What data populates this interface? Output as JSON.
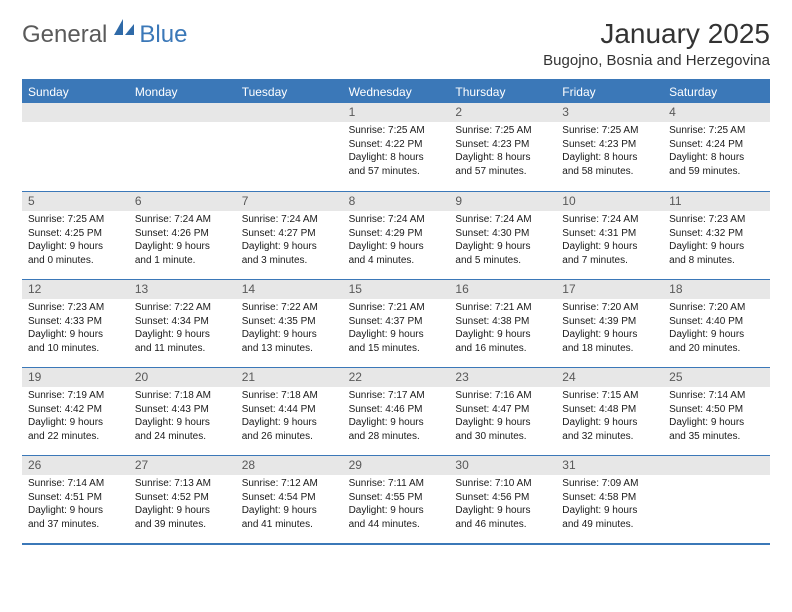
{
  "logo": {
    "general": "General",
    "blue": "Blue"
  },
  "title": "January 2025",
  "location": "Bugojno, Bosnia and Herzegovina",
  "colors": {
    "accent": "#3b78b8",
    "dayHeaderBg": "#e7e7e7",
    "text": "#1a1a1a",
    "mutedText": "#595959",
    "logoGray": "#5a5a5a"
  },
  "weekdays": [
    "Sunday",
    "Monday",
    "Tuesday",
    "Wednesday",
    "Thursday",
    "Friday",
    "Saturday"
  ],
  "weeks": [
    [
      {
        "num": "",
        "lines": []
      },
      {
        "num": "",
        "lines": []
      },
      {
        "num": "",
        "lines": []
      },
      {
        "num": "1",
        "lines": [
          "Sunrise: 7:25 AM",
          "Sunset: 4:22 PM",
          "Daylight: 8 hours",
          "and 57 minutes."
        ]
      },
      {
        "num": "2",
        "lines": [
          "Sunrise: 7:25 AM",
          "Sunset: 4:23 PM",
          "Daylight: 8 hours",
          "and 57 minutes."
        ]
      },
      {
        "num": "3",
        "lines": [
          "Sunrise: 7:25 AM",
          "Sunset: 4:23 PM",
          "Daylight: 8 hours",
          "and 58 minutes."
        ]
      },
      {
        "num": "4",
        "lines": [
          "Sunrise: 7:25 AM",
          "Sunset: 4:24 PM",
          "Daylight: 8 hours",
          "and 59 minutes."
        ]
      }
    ],
    [
      {
        "num": "5",
        "lines": [
          "Sunrise: 7:25 AM",
          "Sunset: 4:25 PM",
          "Daylight: 9 hours",
          "and 0 minutes."
        ]
      },
      {
        "num": "6",
        "lines": [
          "Sunrise: 7:24 AM",
          "Sunset: 4:26 PM",
          "Daylight: 9 hours",
          "and 1 minute."
        ]
      },
      {
        "num": "7",
        "lines": [
          "Sunrise: 7:24 AM",
          "Sunset: 4:27 PM",
          "Daylight: 9 hours",
          "and 3 minutes."
        ]
      },
      {
        "num": "8",
        "lines": [
          "Sunrise: 7:24 AM",
          "Sunset: 4:29 PM",
          "Daylight: 9 hours",
          "and 4 minutes."
        ]
      },
      {
        "num": "9",
        "lines": [
          "Sunrise: 7:24 AM",
          "Sunset: 4:30 PM",
          "Daylight: 9 hours",
          "and 5 minutes."
        ]
      },
      {
        "num": "10",
        "lines": [
          "Sunrise: 7:24 AM",
          "Sunset: 4:31 PM",
          "Daylight: 9 hours",
          "and 7 minutes."
        ]
      },
      {
        "num": "11",
        "lines": [
          "Sunrise: 7:23 AM",
          "Sunset: 4:32 PM",
          "Daylight: 9 hours",
          "and 8 minutes."
        ]
      }
    ],
    [
      {
        "num": "12",
        "lines": [
          "Sunrise: 7:23 AM",
          "Sunset: 4:33 PM",
          "Daylight: 9 hours",
          "and 10 minutes."
        ]
      },
      {
        "num": "13",
        "lines": [
          "Sunrise: 7:22 AM",
          "Sunset: 4:34 PM",
          "Daylight: 9 hours",
          "and 11 minutes."
        ]
      },
      {
        "num": "14",
        "lines": [
          "Sunrise: 7:22 AM",
          "Sunset: 4:35 PM",
          "Daylight: 9 hours",
          "and 13 minutes."
        ]
      },
      {
        "num": "15",
        "lines": [
          "Sunrise: 7:21 AM",
          "Sunset: 4:37 PM",
          "Daylight: 9 hours",
          "and 15 minutes."
        ]
      },
      {
        "num": "16",
        "lines": [
          "Sunrise: 7:21 AM",
          "Sunset: 4:38 PM",
          "Daylight: 9 hours",
          "and 16 minutes."
        ]
      },
      {
        "num": "17",
        "lines": [
          "Sunrise: 7:20 AM",
          "Sunset: 4:39 PM",
          "Daylight: 9 hours",
          "and 18 minutes."
        ]
      },
      {
        "num": "18",
        "lines": [
          "Sunrise: 7:20 AM",
          "Sunset: 4:40 PM",
          "Daylight: 9 hours",
          "and 20 minutes."
        ]
      }
    ],
    [
      {
        "num": "19",
        "lines": [
          "Sunrise: 7:19 AM",
          "Sunset: 4:42 PM",
          "Daylight: 9 hours",
          "and 22 minutes."
        ]
      },
      {
        "num": "20",
        "lines": [
          "Sunrise: 7:18 AM",
          "Sunset: 4:43 PM",
          "Daylight: 9 hours",
          "and 24 minutes."
        ]
      },
      {
        "num": "21",
        "lines": [
          "Sunrise: 7:18 AM",
          "Sunset: 4:44 PM",
          "Daylight: 9 hours",
          "and 26 minutes."
        ]
      },
      {
        "num": "22",
        "lines": [
          "Sunrise: 7:17 AM",
          "Sunset: 4:46 PM",
          "Daylight: 9 hours",
          "and 28 minutes."
        ]
      },
      {
        "num": "23",
        "lines": [
          "Sunrise: 7:16 AM",
          "Sunset: 4:47 PM",
          "Daylight: 9 hours",
          "and 30 minutes."
        ]
      },
      {
        "num": "24",
        "lines": [
          "Sunrise: 7:15 AM",
          "Sunset: 4:48 PM",
          "Daylight: 9 hours",
          "and 32 minutes."
        ]
      },
      {
        "num": "25",
        "lines": [
          "Sunrise: 7:14 AM",
          "Sunset: 4:50 PM",
          "Daylight: 9 hours",
          "and 35 minutes."
        ]
      }
    ],
    [
      {
        "num": "26",
        "lines": [
          "Sunrise: 7:14 AM",
          "Sunset: 4:51 PM",
          "Daylight: 9 hours",
          "and 37 minutes."
        ]
      },
      {
        "num": "27",
        "lines": [
          "Sunrise: 7:13 AM",
          "Sunset: 4:52 PM",
          "Daylight: 9 hours",
          "and 39 minutes."
        ]
      },
      {
        "num": "28",
        "lines": [
          "Sunrise: 7:12 AM",
          "Sunset: 4:54 PM",
          "Daylight: 9 hours",
          "and 41 minutes."
        ]
      },
      {
        "num": "29",
        "lines": [
          "Sunrise: 7:11 AM",
          "Sunset: 4:55 PM",
          "Daylight: 9 hours",
          "and 44 minutes."
        ]
      },
      {
        "num": "30",
        "lines": [
          "Sunrise: 7:10 AM",
          "Sunset: 4:56 PM",
          "Daylight: 9 hours",
          "and 46 minutes."
        ]
      },
      {
        "num": "31",
        "lines": [
          "Sunrise: 7:09 AM",
          "Sunset: 4:58 PM",
          "Daylight: 9 hours",
          "and 49 minutes."
        ]
      },
      {
        "num": "",
        "lines": []
      }
    ]
  ]
}
